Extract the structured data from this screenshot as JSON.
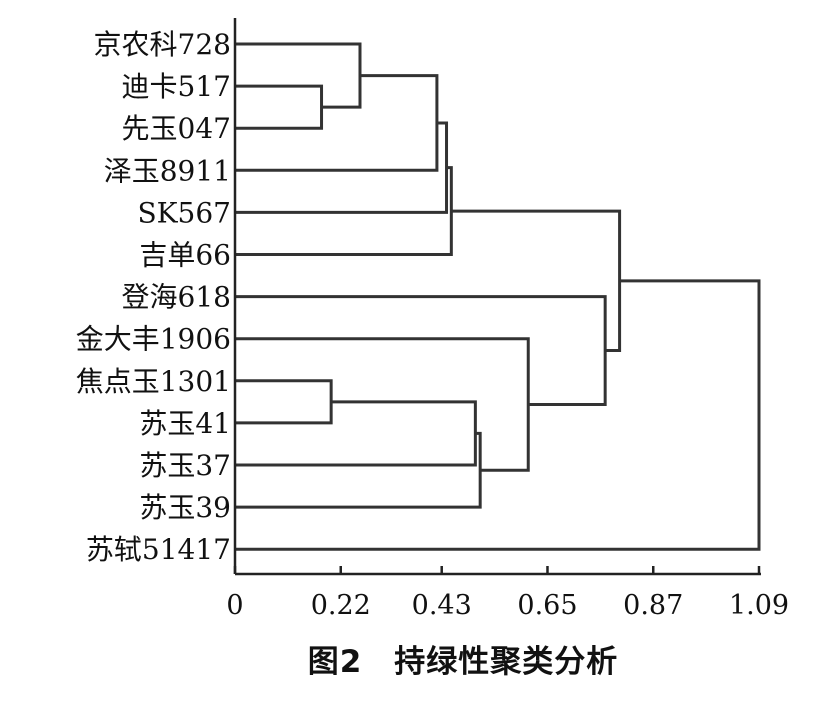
{
  "chart_data": {
    "type": "dendrogram",
    "title": "图2　持绿性聚类分析",
    "xlabel": "",
    "ylabel": "",
    "xlim": [
      0,
      1.09
    ],
    "x_ticks": [
      "0",
      "0.22",
      "0.43",
      "0.65",
      "0.87",
      "1.09"
    ],
    "x_tick_values": [
      0,
      0.22,
      0.43,
      0.65,
      0.87,
      1.09
    ],
    "leaves": [
      "京农科728",
      "迪卡517",
      "先玉047",
      "泽玉8911",
      "SK567",
      "吉单66",
      "登海618",
      "金大丰1906",
      "焦点玉1301",
      "苏玉41",
      "苏玉37",
      "苏玉39",
      "苏轼51417"
    ],
    "merges": [
      {
        "a": "迪卡517",
        "b": "先玉047",
        "height": 0.18
      },
      {
        "a": "焦点玉1301",
        "b": "苏玉41",
        "height": 0.2
      },
      {
        "a": "京农科728",
        "b": "迪卡517+先玉047",
        "height": 0.26
      },
      {
        "a": "京农科728 cluster",
        "b": "泽玉8911",
        "height": 0.42
      },
      {
        "a": "京农科728 cluster",
        "b": "SK567",
        "height": 0.44
      },
      {
        "a": "京农科728 cluster",
        "b": "吉单66",
        "height": 0.45
      },
      {
        "a": "焦点玉1301+苏玉41",
        "b": "苏玉37",
        "height": 0.5
      },
      {
        "a": "焦点玉1301 cluster",
        "b": "苏玉39",
        "height": 0.51
      },
      {
        "a": "金大丰1906",
        "b": "焦点玉1301 cluster",
        "height": 0.61
      },
      {
        "a": "登海618",
        "b": "金大丰1906 cluster",
        "height": 0.77
      },
      {
        "a": "京农科728 cluster",
        "b": "登海618 cluster",
        "height": 0.8
      },
      {
        "a": "all others",
        "b": "苏轼51417",
        "height": 1.09
      }
    ],
    "grid": false,
    "legend": "none"
  }
}
